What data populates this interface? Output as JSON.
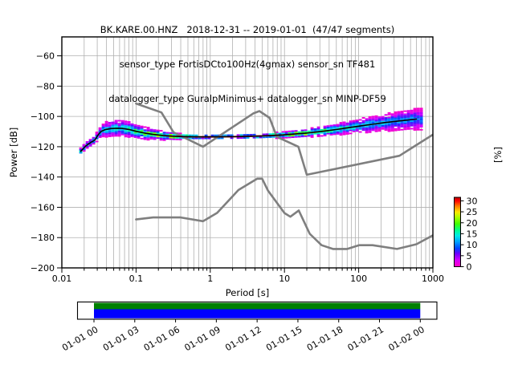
{
  "header": {
    "line1": "BK.KARE.00.HNZ   2018-12-31 -- 2019-01-01  (47/47 segments)",
    "line2": "sensor_type FortisDCto100Hz(4gmax) sensor_sn TF481",
    "line3": "datalogger_type GuralpMinimus+ datalogger_sn MINP-DF59"
  },
  "chart_data": {
    "type": "heatmap",
    "title": "BK.KARE.00.HNZ   2018-12-31 -- 2019-01-01  (47/47 segments)",
    "subtitle_sensor": "sensor_type FortisDCto100Hz(4gmax) sensor_sn TF481",
    "subtitle_datalogger": "datalogger_type GuralpMinimus+ datalogger_sn MINP-DF59",
    "xlabel": "Period [s]",
    "ylabel": "Power [dB]",
    "xscale": "log",
    "xlim": [
      0.01,
      1000
    ],
    "ylim": [
      -200,
      -47.5
    ],
    "grid": true,
    "x_tick_labels": [
      "0.01",
      "0.1",
      "1",
      "10",
      "100",
      "1000"
    ],
    "y_ticks": [
      -60,
      -80,
      -100,
      -120,
      -140,
      -160,
      -180,
      -200
    ],
    "y_tick_labels": [
      "−60",
      "−80",
      "−100",
      "−120",
      "−140",
      "−160",
      "−180",
      "−200"
    ],
    "colorbar": {
      "label": "[%]",
      "ticks": [
        0,
        5,
        10,
        15,
        20,
        25,
        30
      ],
      "tick_labels": [
        "0",
        "5",
        "10",
        "15",
        "20",
        "25",
        "30"
      ],
      "max_value": 31.6,
      "colormap_stops": [
        [
          0.0,
          "#ff00bf"
        ],
        [
          0.1,
          "#d400ff"
        ],
        [
          0.2,
          "#6a00ff"
        ],
        [
          0.28,
          "#0045ff"
        ],
        [
          0.38,
          "#00a4ff"
        ],
        [
          0.47,
          "#00e8e8"
        ],
        [
          0.55,
          "#00ff91"
        ],
        [
          0.65,
          "#40ff00"
        ],
        [
          0.75,
          "#aaff00"
        ],
        [
          0.83,
          "#ffe600"
        ],
        [
          0.92,
          "#ff7a00"
        ],
        [
          1.0,
          "#ff0000"
        ]
      ]
    },
    "psd_mean": {
      "name": "psd-mean-line",
      "color": "#000000",
      "periods_s": [
        0.018,
        0.021,
        0.024,
        0.028,
        0.031,
        0.034,
        0.039,
        0.046,
        0.055,
        0.065,
        0.08,
        0.1,
        0.13,
        0.17,
        0.23,
        0.3,
        0.42,
        0.6,
        0.85,
        1.2,
        1.7,
        2.4,
        3.4,
        4.8,
        6.8,
        9.6,
        13,
        19,
        27,
        38,
        54,
        76,
        107,
        152,
        215,
        304,
        430,
        600
      ],
      "power_db": [
        -123,
        -119.5,
        -117.5,
        -115.5,
        -112,
        -109.8,
        -108.6,
        -108,
        -107.8,
        -107.9,
        -108.6,
        -109.8,
        -111,
        -111.9,
        -112.6,
        -113,
        -113.3,
        -113.5,
        -113.5,
        -113.5,
        -113.4,
        -113.3,
        -113.1,
        -112.9,
        -112.6,
        -112.2,
        -111.7,
        -111.1,
        -110.3,
        -109.4,
        -108.4,
        -107.3,
        -106.2,
        -105.2,
        -104.2,
        -103.3,
        -102.5,
        -101.8
      ]
    },
    "psd_histogram": {
      "spread_db": [
        1.8,
        2,
        2.2,
        2.4,
        2.8,
        3.5,
        4.2,
        4.6,
        4.8,
        4.8,
        4.5,
        4,
        3.5,
        3,
        2.5,
        2,
        1.5,
        1.3,
        1.2,
        1.2,
        1.2,
        1.2,
        1.3,
        1.3,
        1.4,
        1.6,
        1.9,
        2.2,
        2.5,
        2.8,
        3.2,
        3.6,
        4,
        4.4,
        4.8,
        5.2,
        5.6,
        6
      ],
      "peak_percent": [
        14,
        13,
        13,
        12,
        11,
        11,
        12,
        12,
        13,
        13,
        14,
        16,
        18,
        20,
        24,
        28,
        30,
        31,
        31,
        31,
        31,
        31,
        30,
        30,
        29,
        27,
        25,
        23,
        20,
        18,
        16,
        14,
        13,
        12,
        11,
        10,
        10,
        9
      ]
    },
    "noise_models": {
      "color": "#7f7f7f",
      "nhnm": [
        [
          0.1,
          -91.5
        ],
        [
          0.22,
          -97.4
        ],
        [
          0.32,
          -110.5
        ],
        [
          0.8,
          -120
        ],
        [
          3.8,
          -98
        ],
        [
          4.6,
          -96.5
        ],
        [
          6.3,
          -101
        ],
        [
          7.9,
          -113.5
        ],
        [
          15.4,
          -120
        ],
        [
          20,
          -138.5
        ],
        [
          354.8,
          -126
        ],
        [
          1000,
          -112
        ]
      ],
      "nlnm": [
        [
          0.1,
          -168
        ],
        [
          0.17,
          -166.7
        ],
        [
          0.4,
          -166.7
        ],
        [
          0.8,
          -169.2
        ],
        [
          1.24,
          -163.7
        ],
        [
          2.4,
          -148.6
        ],
        [
          4.3,
          -141.1
        ],
        [
          5,
          -141.1
        ],
        [
          6,
          -149
        ],
        [
          10,
          -163.8
        ],
        [
          12,
          -166.2
        ],
        [
          15.6,
          -162.1
        ],
        [
          21.9,
          -177.5
        ],
        [
          31.6,
          -185
        ],
        [
          45,
          -187.5
        ],
        [
          70,
          -187.5
        ],
        [
          101,
          -185
        ],
        [
          154,
          -185
        ],
        [
          328,
          -187.5
        ],
        [
          600,
          -184.4
        ],
        [
          1000,
          -178.5
        ]
      ]
    }
  },
  "timeline": {
    "tick_labels": [
      "01-01 00",
      "01-01 03",
      "01-01 06",
      "01-01 09",
      "01-01 12",
      "01-01 15",
      "01-01 18",
      "01-01 21",
      "01-02 00"
    ],
    "coverage_full": true,
    "band_top_color": "#008000",
    "band_bottom_color": "#0000ff"
  },
  "colors": {
    "grid": "#b0b0b0",
    "noise_model": "#7f7f7f",
    "mean_line": "#000000",
    "frame": "#000000",
    "background": "#ffffff"
  }
}
